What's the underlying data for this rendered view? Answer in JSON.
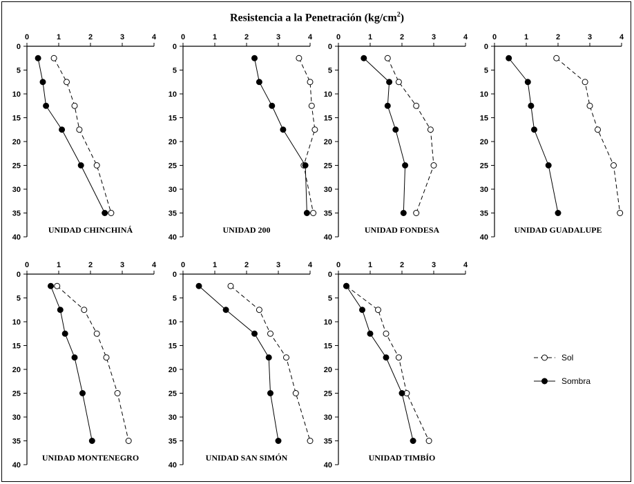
{
  "title": {
    "main": "Resistencia a la Penetración (kg/cm",
    "sup": "2",
    "close": ")"
  },
  "chart_data": {
    "type": "line",
    "orientation": "depth-profile (x = resistance, y = depth increasing downward)",
    "title": "Resistencia a la Penetración (kg/cm2)",
    "xlim": [
      0,
      4
    ],
    "ylim": [
      0,
      40
    ],
    "x_ticks": [
      "0",
      "1",
      "2",
      "3",
      "4"
    ],
    "y_ticks": [
      "0",
      "5",
      "10",
      "15",
      "20",
      "25",
      "30",
      "35",
      "40"
    ],
    "legend": [
      {
        "name": "Sol",
        "style": "dashed",
        "marker": "open-circle"
      },
      {
        "name": "Sombra",
        "style": "solid",
        "marker": "filled-circle"
      }
    ],
    "legend_position": "right",
    "panels": [
      {
        "title": "UNIDAD CHINCHINÁ",
        "series": [
          {
            "name": "Sol",
            "points": [
              [
                0.85,
                2.5
              ],
              [
                1.25,
                7.5
              ],
              [
                1.5,
                12.5
              ],
              [
                1.65,
                17.5
              ],
              [
                2.2,
                25
              ],
              [
                2.65,
                35
              ]
            ]
          },
          {
            "name": "Sombra",
            "points": [
              [
                0.35,
                2.5
              ],
              [
                0.5,
                7.5
              ],
              [
                0.6,
                12.5
              ],
              [
                1.1,
                17.5
              ],
              [
                1.7,
                25
              ],
              [
                2.45,
                35
              ]
            ]
          }
        ]
      },
      {
        "title": "UNIDAD 200",
        "series": [
          {
            "name": "Sol",
            "points": [
              [
                3.65,
                2.5
              ],
              [
                4.0,
                7.5
              ],
              [
                4.05,
                12.5
              ],
              [
                4.15,
                17.5
              ],
              [
                3.8,
                25
              ],
              [
                4.1,
                35
              ]
            ]
          },
          {
            "name": "Sombra",
            "points": [
              [
                2.25,
                2.5
              ],
              [
                2.4,
                7.5
              ],
              [
                2.8,
                12.5
              ],
              [
                3.15,
                17.5
              ],
              [
                3.85,
                25
              ],
              [
                3.9,
                35
              ]
            ]
          }
        ]
      },
      {
        "title": "UNIDAD FONDESA",
        "series": [
          {
            "name": "Sol",
            "points": [
              [
                1.55,
                2.5
              ],
              [
                1.9,
                7.5
              ],
              [
                2.45,
                12.5
              ],
              [
                2.9,
                17.5
              ],
              [
                3.0,
                25
              ],
              [
                2.45,
                35
              ]
            ]
          },
          {
            "name": "Sombra",
            "points": [
              [
                0.8,
                2.5
              ],
              [
                1.6,
                7.5
              ],
              [
                1.55,
                12.5
              ],
              [
                1.8,
                17.5
              ],
              [
                2.1,
                25
              ],
              [
                2.05,
                35
              ]
            ]
          }
        ]
      },
      {
        "title": "UNIDAD GUADALUPE",
        "series": [
          {
            "name": "Sol",
            "points": [
              [
                1.95,
                2.5
              ],
              [
                2.85,
                7.5
              ],
              [
                3.0,
                12.5
              ],
              [
                3.25,
                17.5
              ],
              [
                3.75,
                25
              ],
              [
                3.95,
                35
              ]
            ]
          },
          {
            "name": "Sombra",
            "points": [
              [
                0.45,
                2.5
              ],
              [
                1.05,
                7.5
              ],
              [
                1.15,
                12.5
              ],
              [
                1.25,
                17.5
              ],
              [
                1.7,
                25
              ],
              [
                2.0,
                35
              ]
            ]
          }
        ]
      },
      {
        "title": "UNIDAD MONTENEGRO",
        "series": [
          {
            "name": "Sol",
            "points": [
              [
                0.95,
                2.5
              ],
              [
                1.8,
                7.5
              ],
              [
                2.2,
                12.5
              ],
              [
                2.5,
                17.5
              ],
              [
                2.85,
                25
              ],
              [
                3.2,
                35
              ]
            ]
          },
          {
            "name": "Sombra",
            "points": [
              [
                0.75,
                2.5
              ],
              [
                1.05,
                7.5
              ],
              [
                1.2,
                12.5
              ],
              [
                1.5,
                17.5
              ],
              [
                1.75,
                25
              ],
              [
                2.05,
                35
              ]
            ]
          }
        ]
      },
      {
        "title": "UNIDAD SAN SIMÓN",
        "series": [
          {
            "name": "Sol",
            "points": [
              [
                1.5,
                2.5
              ],
              [
                2.4,
                7.5
              ],
              [
                2.75,
                12.5
              ],
              [
                3.25,
                17.5
              ],
              [
                3.55,
                25
              ],
              [
                4.0,
                35
              ]
            ]
          },
          {
            "name": "Sombra",
            "points": [
              [
                0.5,
                2.5
              ],
              [
                1.35,
                7.5
              ],
              [
                2.25,
                12.5
              ],
              [
                2.7,
                17.5
              ],
              [
                2.75,
                25
              ],
              [
                3.0,
                35
              ]
            ]
          }
        ]
      },
      {
        "title": "UNIDAD TIMBÍO",
        "series": [
          {
            "name": "Sol",
            "points": [
              [
                0.25,
                2.5
              ],
              [
                1.25,
                7.5
              ],
              [
                1.5,
                12.5
              ],
              [
                1.9,
                17.5
              ],
              [
                2.15,
                25
              ],
              [
                2.85,
                35
              ]
            ]
          },
          {
            "name": "Sombra",
            "points": [
              [
                0.25,
                2.5
              ],
              [
                0.75,
                7.5
              ],
              [
                1.0,
                12.5
              ],
              [
                1.5,
                17.5
              ],
              [
                2.0,
                25
              ],
              [
                2.35,
                35
              ]
            ]
          }
        ]
      }
    ]
  }
}
